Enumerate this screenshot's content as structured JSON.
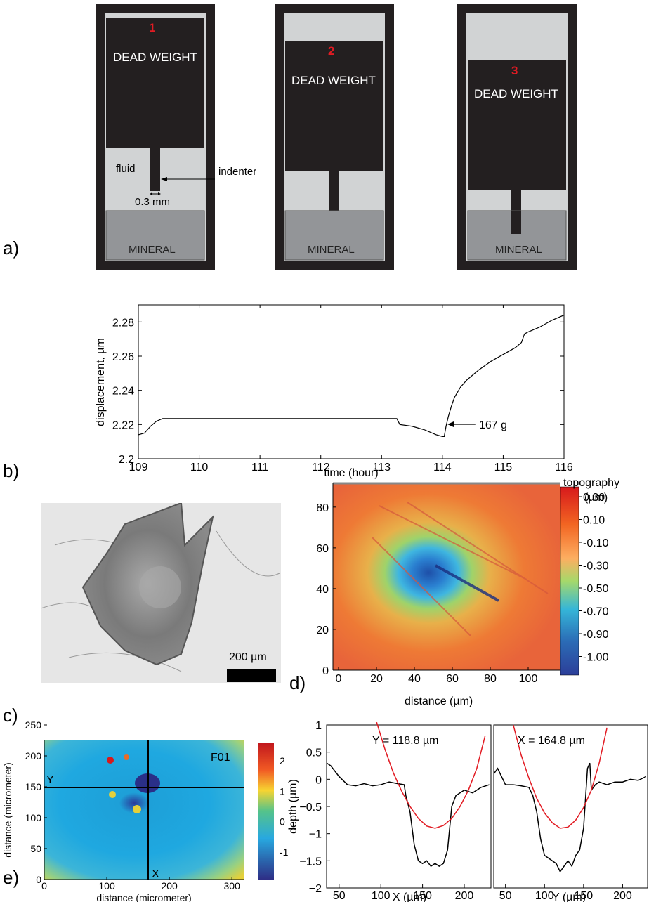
{
  "panel_labels": {
    "a": "a)",
    "b": "b)",
    "c": "c)",
    "d": "d)",
    "e": "e)"
  },
  "panel_a": {
    "frames": [
      {
        "number": "1",
        "weight_label": "DEAD WEIGHT",
        "mineral_label": "MINERAL"
      },
      {
        "number": "2",
        "weight_label": "DEAD WEIGHT",
        "mineral_label": "MINERAL"
      },
      {
        "number": "3",
        "weight_label": "DEAD WEIGHT",
        "mineral_label": "MINERAL"
      }
    ],
    "fluid_label": "fluid",
    "indenter_label": "indenter",
    "width_label": "0.3 mm",
    "colors": {
      "frame": "#231f20",
      "fluid": "#d1d3d4",
      "mineral": "#939598",
      "number": "#e21b23"
    }
  },
  "panel_c": {
    "scalebar_label": "200 µm"
  },
  "panel_d": {
    "colorbar_title": "topography",
    "colorbar_unit": "(µm)",
    "colorbar_ticks": [
      "0.30",
      "0.10",
      "-0.10",
      "-0.30",
      "-0.50",
      "-0.70",
      "-0.90",
      "-1.00"
    ],
    "xlabel": "distance (µm)",
    "xticks": [
      "0",
      "20",
      "40",
      "60",
      "80",
      "100"
    ],
    "yticks": [
      "0",
      "20",
      "40",
      "60",
      "80"
    ]
  },
  "panel_e_map": {
    "corner_label": "F01",
    "line_labels": {
      "y": "Y",
      "x": "X"
    },
    "xlabel": "distance (micrometer)",
    "ylabel": "distance (micrometer)",
    "xticks": [
      "0",
      "100",
      "200",
      "300"
    ],
    "yticks": [
      "0",
      "50",
      "100",
      "150",
      "200",
      "250"
    ],
    "colorbar_ticks": [
      "2",
      "1",
      "0",
      "-1"
    ]
  },
  "chart_data": [
    {
      "type": "line",
      "panel": "b",
      "xlabel": "time (hour)",
      "ylabel": "displacement, µm",
      "xlim": [
        109,
        116
      ],
      "ylim": [
        2.2,
        2.29
      ],
      "xticks": [
        109,
        110,
        111,
        112,
        113,
        114,
        115,
        116
      ],
      "yticks": [
        2.2,
        2.22,
        2.24,
        2.26,
        2.28
      ],
      "annotation": {
        "text": "167 g",
        "x": 114.0,
        "y": 2.213
      },
      "series": [
        {
          "color": "#000000",
          "x": [
            109.0,
            109.1,
            109.2,
            109.3,
            109.4,
            110.0,
            111.0,
            112.0,
            113.0,
            113.25,
            113.3,
            113.5,
            113.7,
            113.9,
            114.0,
            114.03,
            114.06,
            114.1,
            114.15,
            114.2,
            114.3,
            114.4,
            114.5,
            114.6,
            114.8,
            115.0,
            115.2,
            115.3,
            115.35,
            115.4,
            115.6,
            115.8,
            116.0
          ],
          "y": [
            2.214,
            2.215,
            2.219,
            2.222,
            2.2235,
            2.2235,
            2.2235,
            2.2235,
            2.2235,
            2.2235,
            2.22,
            2.219,
            2.217,
            2.214,
            2.213,
            2.213,
            2.219,
            2.225,
            2.231,
            2.236,
            2.242,
            2.246,
            2.249,
            2.252,
            2.257,
            2.261,
            2.265,
            2.268,
            2.273,
            2.274,
            2.277,
            2.281,
            2.284
          ]
        }
      ]
    },
    {
      "type": "line",
      "panel": "e-profile-left",
      "title": "Y = 118.8 µm",
      "xlabel": "X (µm)",
      "ylabel": "depth (µm)",
      "xlim": [
        35,
        232
      ],
      "ylim": [
        -2,
        1
      ],
      "xticks": [
        50,
        100,
        150,
        200
      ],
      "yticks": [
        1,
        0.5,
        0,
        -0.5,
        -1,
        -1.5,
        -2
      ],
      "series": [
        {
          "color": "#000000",
          "x": [
            35,
            40,
            50,
            60,
            70,
            80,
            90,
            100,
            110,
            120,
            128,
            130,
            135,
            140,
            145,
            150,
            155,
            160,
            165,
            170,
            175,
            180,
            185,
            190,
            200,
            210,
            220,
            230
          ],
          "y": [
            0.3,
            0.25,
            0.05,
            -0.1,
            -0.12,
            -0.08,
            -0.12,
            -0.1,
            -0.05,
            -0.08,
            -0.1,
            -0.3,
            -0.6,
            -1.2,
            -1.5,
            -1.55,
            -1.5,
            -1.6,
            -1.55,
            -1.6,
            -1.55,
            -1.3,
            -0.5,
            -0.3,
            -0.2,
            -0.25,
            -0.15,
            -0.1
          ]
        },
        {
          "color": "#e21b23",
          "x": [
            95,
            105,
            115,
            125,
            135,
            145,
            155,
            165,
            175,
            185,
            195,
            205,
            215,
            225
          ],
          "y": [
            1.05,
            0.55,
            0.12,
            -0.22,
            -0.5,
            -0.72,
            -0.86,
            -0.9,
            -0.85,
            -0.72,
            -0.5,
            -0.2,
            0.2,
            0.8
          ]
        }
      ]
    },
    {
      "type": "line",
      "panel": "e-profile-right",
      "title": "X = 164.8 µm",
      "xlabel": "Y (µm)",
      "xlim": [
        35,
        232
      ],
      "ylim": [
        -2,
        1
      ],
      "xticks": [
        50,
        100,
        150,
        200
      ],
      "series": [
        {
          "color": "#000000",
          "x": [
            35,
            40,
            50,
            60,
            70,
            80,
            85,
            90,
            95,
            100,
            105,
            110,
            115,
            120,
            125,
            130,
            135,
            140,
            145,
            150,
            155,
            158,
            160,
            165,
            170,
            180,
            190,
            200,
            210,
            220,
            230
          ],
          "y": [
            0.1,
            0.2,
            -0.1,
            -0.1,
            -0.12,
            -0.15,
            -0.3,
            -0.6,
            -1.1,
            -1.4,
            -1.45,
            -1.5,
            -1.55,
            -1.7,
            -1.6,
            -1.5,
            -1.6,
            -1.4,
            -1.3,
            -0.9,
            0.2,
            0.3,
            -0.2,
            -0.1,
            -0.05,
            -0.1,
            -0.05,
            -0.05,
            0.0,
            -0.02,
            0.05
          ]
        },
        {
          "color": "#e21b23",
          "x": [
            60,
            70,
            80,
            90,
            100,
            110,
            120,
            130,
            140,
            150,
            160,
            170,
            180
          ],
          "y": [
            1.0,
            0.45,
            0.02,
            -0.35,
            -0.62,
            -0.8,
            -0.9,
            -0.88,
            -0.75,
            -0.52,
            -0.2,
            0.3,
            0.95
          ]
        }
      ]
    }
  ]
}
